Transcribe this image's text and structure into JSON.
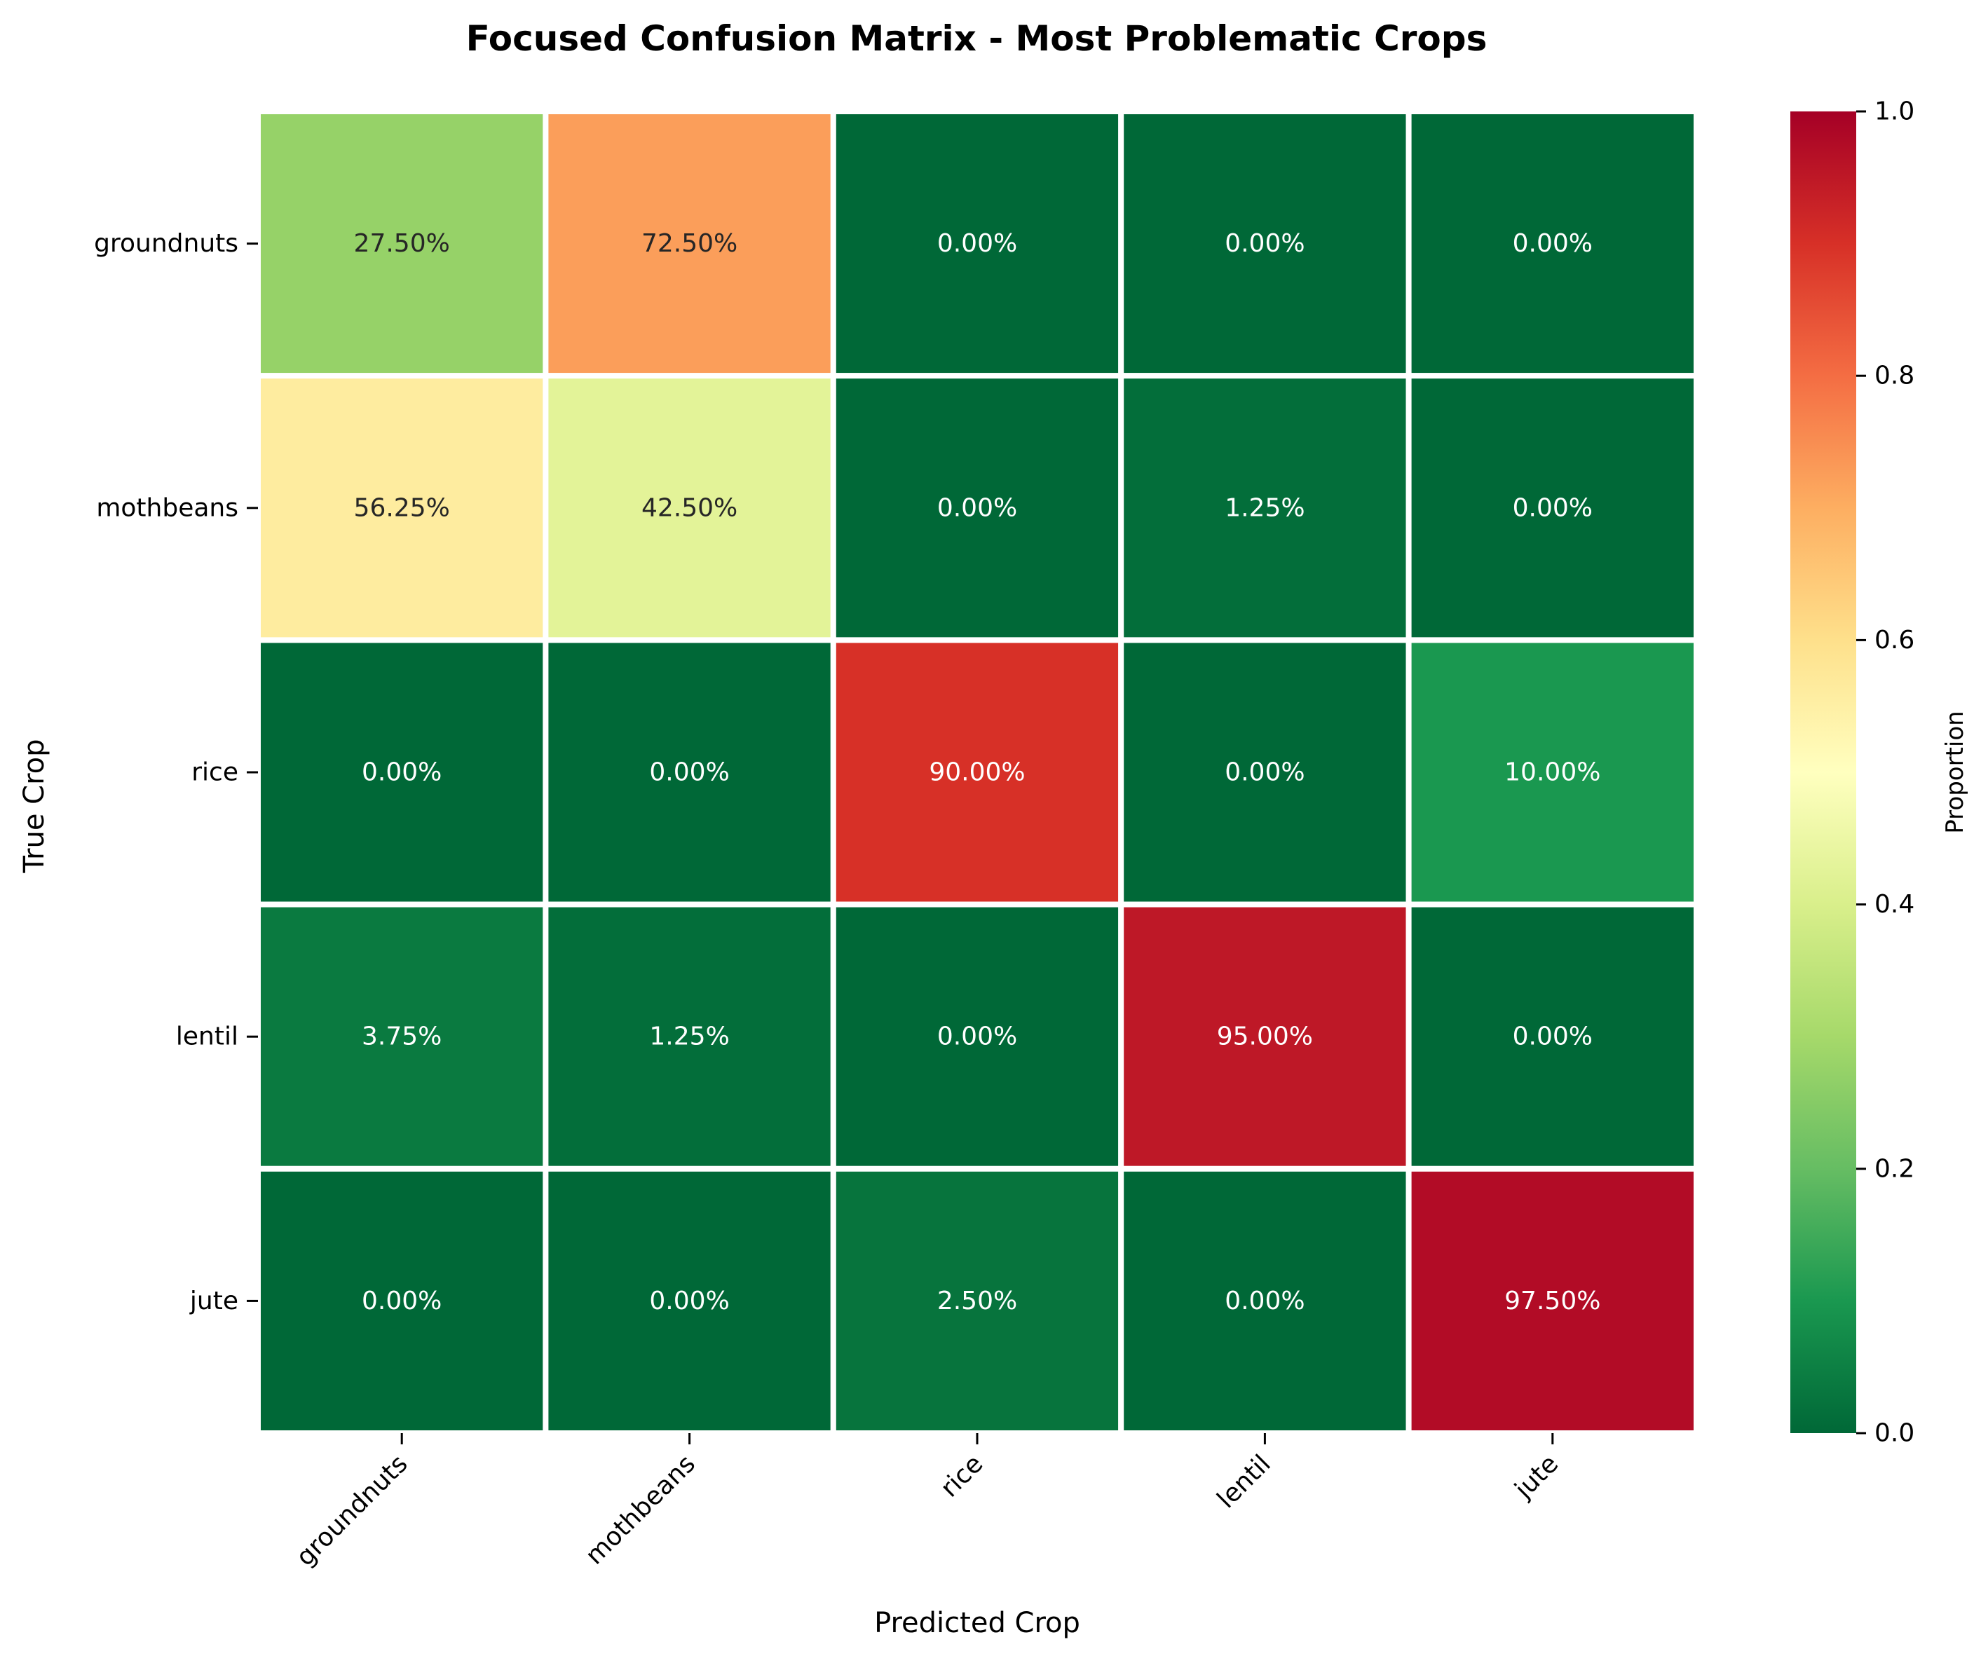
{
  "chart_data": {
    "type": "heatmap",
    "title": "Focused Confusion Matrix - Most Problematic Crops",
    "xlabel": "Predicted Crop",
    "ylabel": "True Crop",
    "x_categories": [
      "groundnuts",
      "mothbeans",
      "rice",
      "lentil",
      "jute"
    ],
    "y_categories": [
      "groundnuts",
      "mothbeans",
      "rice",
      "lentil",
      "jute"
    ],
    "values": [
      [
        0.275,
        0.725,
        0.0,
        0.0,
        0.0
      ],
      [
        0.5625,
        0.425,
        0.0,
        0.0125,
        0.0
      ],
      [
        0.0,
        0.0,
        0.9,
        0.0,
        0.1
      ],
      [
        0.0375,
        0.0125,
        0.0,
        0.95,
        0.0
      ],
      [
        0.0,
        0.0,
        0.025,
        0.0,
        0.975
      ]
    ],
    "cell_labels": [
      [
        "27.50%",
        "72.50%",
        "0.00%",
        "0.00%",
        "0.00%"
      ],
      [
        "56.25%",
        "42.50%",
        "0.00%",
        "1.25%",
        "0.00%"
      ],
      [
        "0.00%",
        "0.00%",
        "90.00%",
        "0.00%",
        "10.00%"
      ],
      [
        "3.75%",
        "1.25%",
        "0.00%",
        "95.00%",
        "0.00%"
      ],
      [
        "0.00%",
        "0.00%",
        "2.50%",
        "0.00%",
        "97.50%"
      ]
    ],
    "colormap": "RdYlGn_r",
    "colorbar": {
      "label": "Proportion",
      "range": [
        0.0,
        1.0
      ],
      "tick_values": [
        0.0,
        0.2,
        0.4,
        0.6,
        0.8,
        1.0
      ],
      "tick_labels": [
        "0.0",
        "0.2",
        "0.4",
        "0.6",
        "0.8",
        "1.0"
      ]
    }
  }
}
